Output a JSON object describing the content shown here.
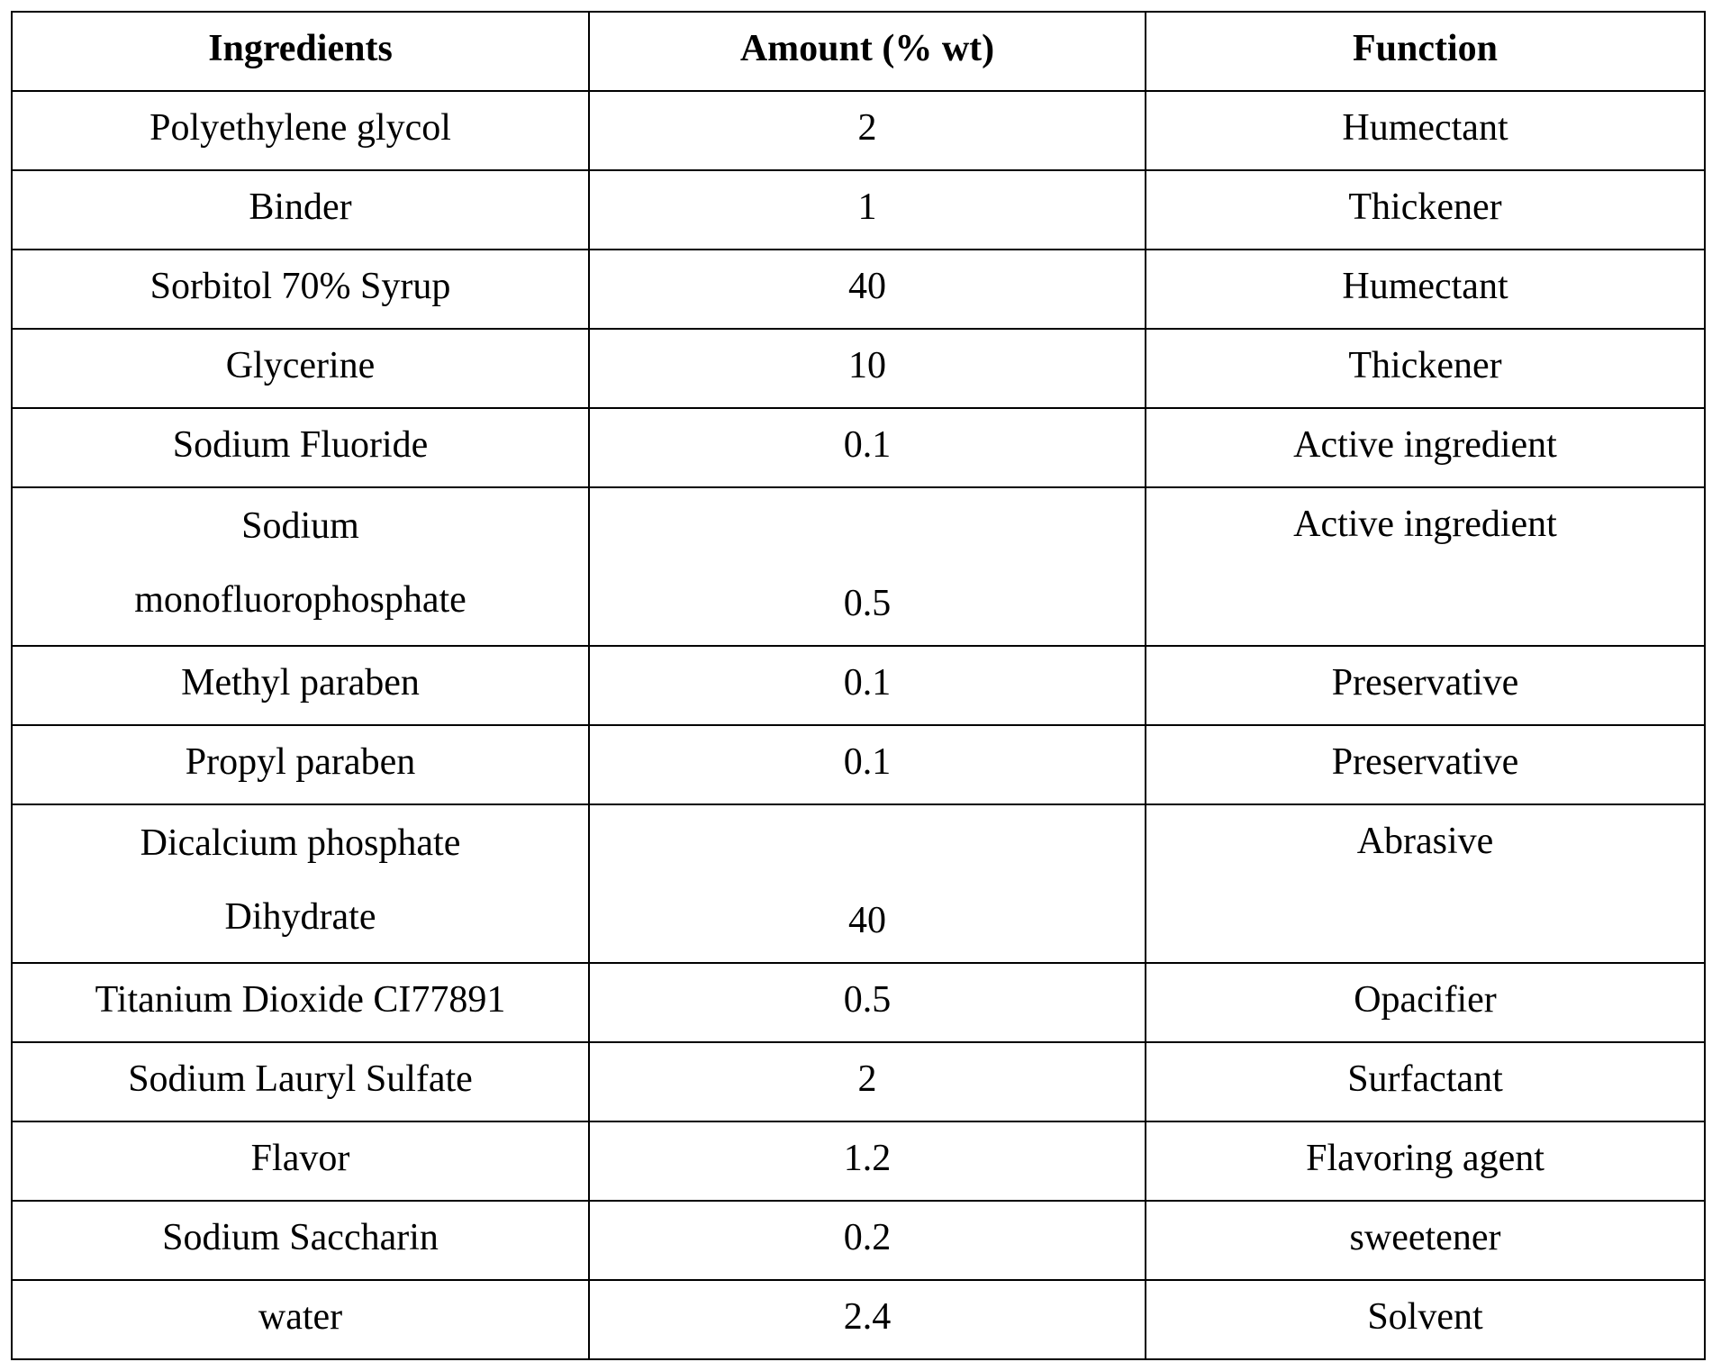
{
  "table": {
    "headers": [
      "Ingredients",
      "Amount (% wt)",
      "Function"
    ],
    "rows": [
      {
        "ingredient": "Polyethylene glycol",
        "amount": "2",
        "function": "Humectant"
      },
      {
        "ingredient": "Binder",
        "amount": "1",
        "function": "Thickener"
      },
      {
        "ingredient": "Sorbitol  70% Syrup",
        "amount": "40",
        "function": "Humectant"
      },
      {
        "ingredient": "Glycerine",
        "amount": "10",
        "function": "Thickener"
      },
      {
        "ingredient": "Sodium Fluoride",
        "amount": "0.1",
        "function": "Active ingredient"
      },
      {
        "ingredient_lines": [
          "Sodium",
          "monofluorophosphate"
        ],
        "amount": "0.5",
        "function": "Active ingredient"
      },
      {
        "ingredient": "Methyl paraben",
        "amount": "0.1",
        "function": "Preservative"
      },
      {
        "ingredient": "Propyl paraben",
        "amount": "0.1",
        "function": "Preservative"
      },
      {
        "ingredient_lines": [
          "Dicalcium phosphate",
          "Dihydrate"
        ],
        "amount": "40",
        "function": "Abrasive"
      },
      {
        "ingredient": "Titanium Dioxide  CI77891",
        "amount": "0.5",
        "function": "Opacifier"
      },
      {
        "ingredient": "Sodium Lauryl Sulfate",
        "amount": "2",
        "function": "Surfactant"
      },
      {
        "ingredient": "Flavor",
        "amount": "1.2",
        "function": "Flavoring agent"
      },
      {
        "ingredient": "Sodium Saccharin",
        "amount": "0.2",
        "function": "sweetener"
      },
      {
        "ingredient": "water",
        "amount": "2.4",
        "function": "Solvent"
      }
    ]
  }
}
